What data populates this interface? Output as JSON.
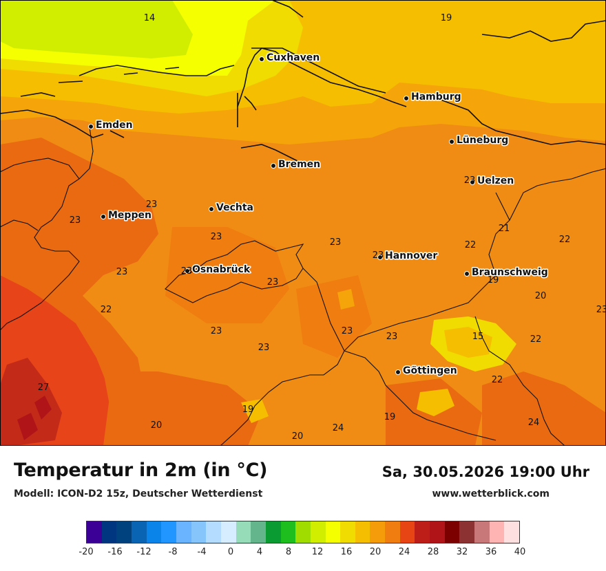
{
  "header": {
    "title": "Temperatur in 2m (in °C)",
    "model": "Modell: ICON-D2 15z, Deutscher Wetterdienst",
    "datetime": "Sa, 30.05.2026 19:00 Uhr",
    "site": "www.wetterblick.com"
  },
  "cities": [
    {
      "name": "Cuxhaven"
    },
    {
      "name": "Hamburg"
    },
    {
      "name": "Emden"
    },
    {
      "name": "Lüneburg"
    },
    {
      "name": "Bremen"
    },
    {
      "name": "Uelzen"
    },
    {
      "name": "Vechta"
    },
    {
      "name": "Meppen"
    },
    {
      "name": "Hannover"
    },
    {
      "name": "Osnabrück"
    },
    {
      "name": "Braunschweig"
    },
    {
      "name": "Göttingen"
    }
  ],
  "values": [
    "14",
    "19",
    "23",
    "23",
    "23",
    "22",
    "21",
    "22",
    "23",
    "23",
    "23",
    "23",
    "22",
    "23",
    "23",
    "19",
    "20",
    "23",
    "22",
    "23",
    "23",
    "23",
    "15",
    "22",
    "23",
    "27",
    "19",
    "19",
    "20",
    "20",
    "24",
    "24"
  ],
  "scale": {
    "colors": [
      "#3b0095",
      "#003580",
      "#00427d",
      "#0a64b4",
      "#0a84e8",
      "#2296ff",
      "#6ab4ff",
      "#86c4fc",
      "#b4dcff",
      "#d6ecff",
      "#96dcb8",
      "#64b48c",
      "#0a9c32",
      "#1ebe1e",
      "#a0dc00",
      "#d2ee00",
      "#f5ff00",
      "#f0dc00",
      "#f5be00",
      "#f59c0a",
      "#ef7d10",
      "#e84514",
      "#be1e18",
      "#b01418",
      "#7d0000",
      "#8c3232",
      "#c87878",
      "#ffb4b4",
      "#ffe0e0"
    ],
    "ticks": [
      "-20",
      "-16",
      "-12",
      "-8",
      "-4",
      "0",
      "4",
      "8",
      "12",
      "16",
      "20",
      "24",
      "28",
      "32",
      "36",
      "40"
    ]
  }
}
